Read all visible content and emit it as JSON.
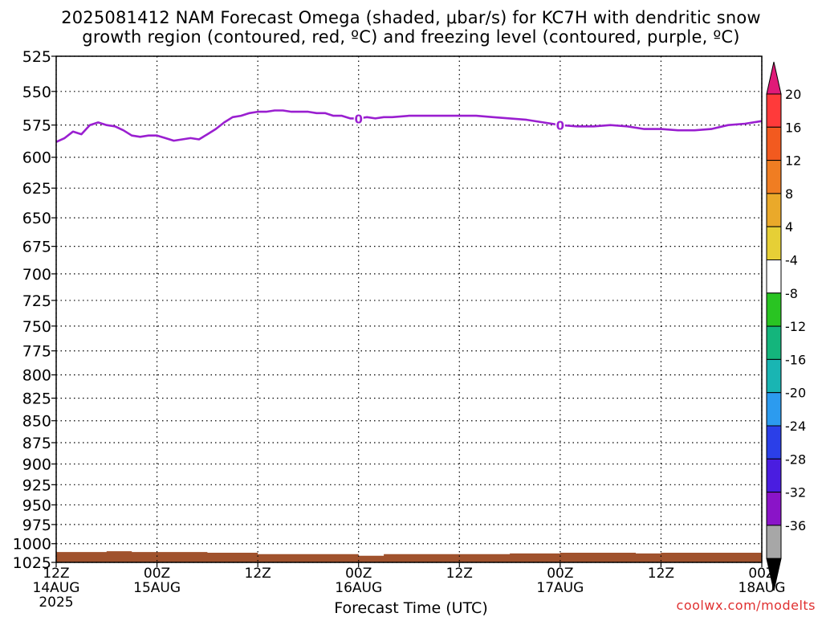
{
  "title": {
    "line1": "2025081412 NAM Forecast Omega (shaded, μbar/s) for KC7H with dendritic snow",
    "line2": "growth region (contoured, red, ºC) and freezing level (contoured, purple, ºC)"
  },
  "credit": "coolwx.com/modelts",
  "chart_data": {
    "type": "line",
    "title": "2025081412 NAM Forecast Omega (shaded, μbar/s) for KC7H with dendritic snow growth region (contoured, red, ºC) and freezing level (contoured, purple, ºC)",
    "xlabel": "Forecast Time (UTC)",
    "ylabel": "",
    "y_scale": "log-pressure",
    "y_inverted": true,
    "ylim": [
      525,
      1025
    ],
    "y_ticks": [
      "525",
      "550",
      "575",
      "600",
      "625",
      "650",
      "675",
      "700",
      "725",
      "750",
      "775",
      "800",
      "825",
      "850",
      "875",
      "900",
      "925",
      "950",
      "975",
      "1000",
      "1025"
    ],
    "x_range_hours": [
      0,
      84
    ],
    "x_ticks": [
      {
        "hour": 0,
        "line1": "12Z",
        "line2": "14AUG",
        "line3": "2025"
      },
      {
        "hour": 12,
        "line1": "00Z",
        "line2": "15AUG",
        "line3": ""
      },
      {
        "hour": 24,
        "line1": "12Z",
        "line2": "",
        "line3": ""
      },
      {
        "hour": 36,
        "line1": "00Z",
        "line2": "16AUG",
        "line3": ""
      },
      {
        "hour": 48,
        "line1": "12Z",
        "line2": "",
        "line3": ""
      },
      {
        "hour": 60,
        "line1": "00Z",
        "line2": "17AUG",
        "line3": ""
      },
      {
        "hour": 72,
        "line1": "12Z",
        "line2": "",
        "line3": ""
      },
      {
        "hour": 84,
        "line1": "00Z",
        "line2": "18AUG",
        "line3": ""
      }
    ],
    "grid": "dotted",
    "series": [
      {
        "name": "freezing level 0 ºC",
        "color": "#9a1fd0",
        "contour_label": "0",
        "label_hours": [
          36,
          60
        ],
        "x_hours": [
          0,
          1,
          2,
          3,
          4,
          5,
          6,
          7,
          8,
          9,
          10,
          11,
          12,
          13,
          14,
          15,
          16,
          17,
          18,
          19,
          20,
          21,
          22,
          23,
          24,
          25,
          26,
          27,
          28,
          29,
          30,
          31,
          32,
          33,
          34,
          35,
          36,
          37,
          38,
          39,
          40,
          42,
          44,
          46,
          48,
          50,
          52,
          54,
          56,
          58,
          60,
          62,
          64,
          66,
          68,
          70,
          72,
          74,
          76,
          78,
          80,
          82,
          84
        ],
        "pressure": [
          588,
          585,
          580,
          582,
          575,
          573,
          575,
          576,
          579,
          583,
          584,
          583,
          583,
          585,
          587,
          586,
          585,
          586,
          582,
          578,
          573,
          569,
          568,
          566,
          565,
          565,
          564,
          564,
          565,
          565,
          565,
          566,
          566,
          568,
          568,
          570,
          570,
          569,
          570,
          569,
          569,
          568,
          568,
          568,
          568,
          568,
          569,
          570,
          571,
          573,
          575,
          576,
          576,
          575,
          576,
          578,
          578,
          579,
          579,
          578,
          575,
          574,
          572
        ]
      }
    ],
    "terrain": {
      "color": "#a0522d",
      "x_hours": [
        0,
        3,
        6,
        9,
        12,
        15,
        18,
        21,
        24,
        27,
        30,
        33,
        36,
        39,
        42,
        45,
        48,
        51,
        54,
        57,
        60,
        63,
        66,
        69,
        72,
        75,
        78,
        81,
        84
      ],
      "surface_pressure": [
        1011,
        1011,
        1010,
        1011,
        1011,
        1011,
        1012,
        1012,
        1014,
        1014,
        1014,
        1014,
        1016,
        1014,
        1014,
        1014,
        1014,
        1014,
        1013,
        1013,
        1012,
        1012,
        1012,
        1013,
        1012,
        1012,
        1012,
        1012,
        1012
      ]
    },
    "colorbar": {
      "labels": [
        "20",
        "16",
        "12",
        "8",
        "4",
        "-4",
        "-8",
        "-12",
        "-16",
        "-20",
        "-24",
        "-28",
        "-32",
        "-36"
      ],
      "colors": [
        "#ff3a3a",
        "#f25a1f",
        "#f07d22",
        "#eaa92a",
        "#e6cf36",
        "#ffffff",
        "#29c422",
        "#14b57c",
        "#19b5b3",
        "#2c9bef",
        "#2b3fe8",
        "#4a1de0",
        "#8a14c8",
        "#a7a7a7"
      ],
      "top_arrow_color": "#e01a78",
      "bottom_arrow_color": "#000000"
    }
  }
}
